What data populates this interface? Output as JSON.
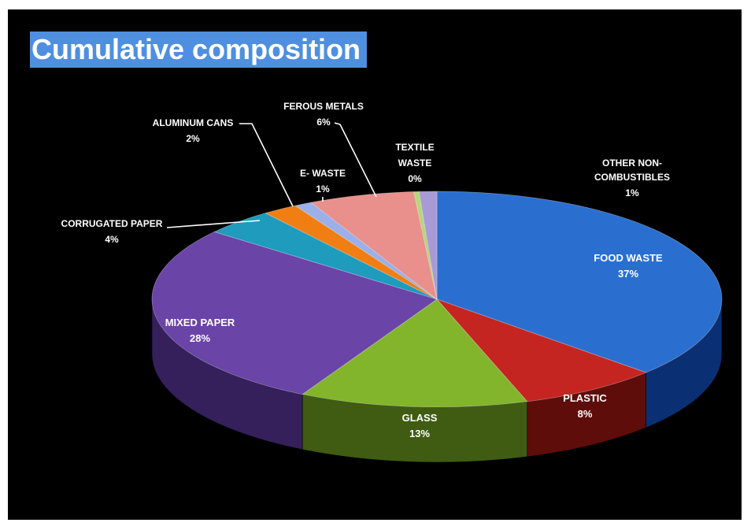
{
  "title": "Cumulative composition",
  "chart_data": {
    "type": "pie",
    "title": "Cumulative composition",
    "style": "3d-pie",
    "slices": [
      {
        "label": "FOOD WASTE",
        "pct": "37%",
        "value": 37,
        "color": "#2a6fd0",
        "side": "#0b2f73",
        "line1": "FOOD WASTE",
        "line2": ""
      },
      {
        "label": "PLASTIC",
        "pct": "8%",
        "value": 8,
        "color": "#c42521",
        "side": "#5e0d0b",
        "line1": "PLASTIC",
        "line2": ""
      },
      {
        "label": "GLASS",
        "pct": "13%",
        "value": 13,
        "color": "#82b52c",
        "side": "#3f5c12",
        "line1": "GLASS",
        "line2": ""
      },
      {
        "label": "MIXED PAPER",
        "pct": "28%",
        "value": 28,
        "color": "#6b44a8",
        "side": "#35205c",
        "line1": "MIXED PAPER",
        "line2": ""
      },
      {
        "label": "CORRUGATED PAPER",
        "pct": "4%",
        "value": 4,
        "color": "#1e9bbd",
        "side": "#0c4a5c",
        "line1": "CORRUGATED PAPER",
        "line2": ""
      },
      {
        "label": "ALUMINUM CANS",
        "pct": "2%",
        "value": 2,
        "color": "#f07e12",
        "side": "#7a3c05",
        "line1": "ALUMINUM CANS",
        "line2": ""
      },
      {
        "label": "E- WASTE",
        "pct": "1%",
        "value": 1,
        "color": "#9bb0e8",
        "side": "#4c5a80",
        "line1": "E- WASTE",
        "line2": ""
      },
      {
        "label": "FEROUS METALS",
        "pct": "6%",
        "value": 6,
        "color": "#e98f8c",
        "side": "#7a3f3d",
        "line1": "FEROUS METALS",
        "line2": ""
      },
      {
        "label": "TEXTILE WASTE",
        "pct": "0%",
        "value": 0.3,
        "color": "#b7d67a",
        "side": "#5a6d36",
        "line1": "TEXTILE",
        "line2": "WASTE"
      },
      {
        "label": "OTHER NON-COMBUSTIBLES",
        "pct": "1%",
        "value": 1,
        "color": "#a89ad6",
        "side": "#4f4770",
        "line1": "OTHER NON-",
        "line2": "COMBUSTIBLES"
      }
    ]
  }
}
